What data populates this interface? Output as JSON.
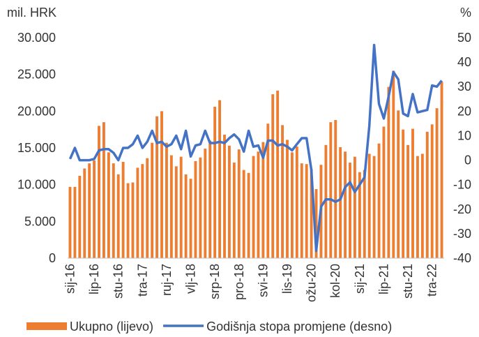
{
  "chart_data": {
    "type": "bar-line",
    "y_label": "mil. HRK",
    "y2_label": "%",
    "categories": [
      "sij-16",
      null,
      null,
      null,
      null,
      "lip-16",
      null,
      null,
      null,
      null,
      "stu-16",
      null,
      null,
      null,
      null,
      "tra-17",
      null,
      null,
      null,
      null,
      "ruj-17",
      null,
      null,
      null,
      null,
      "vlj-18",
      null,
      null,
      null,
      null,
      "srp-18",
      null,
      null,
      null,
      null,
      "pro-18",
      null,
      null,
      null,
      null,
      "svi-19",
      null,
      null,
      null,
      null,
      "lis-19",
      null,
      null,
      null,
      null,
      "ožu-20",
      null,
      null,
      null,
      null,
      "kol-20",
      null,
      null,
      null,
      null,
      "sij-21",
      null,
      null,
      null,
      null,
      "lip-21",
      null,
      null,
      null,
      null,
      "stu-21",
      null,
      null,
      null,
      null,
      "tra-22",
      null,
      null
    ],
    "series": [
      {
        "name": "Ukupno (lijevo)",
        "type": "bar",
        "color": "#ed7d31",
        "values": [
          9700,
          9700,
          11200,
          12200,
          12900,
          13300,
          18000,
          18500,
          14400,
          12900,
          11400,
          13100,
          10200,
          10300,
          12300,
          12800,
          13600,
          15700,
          19300,
          20000,
          15700,
          14000,
          12500,
          13800,
          11400,
          10800,
          13200,
          13700,
          14900,
          16000,
          20600,
          21500,
          16800,
          15300,
          13000,
          14800,
          12000,
          11600,
          13900,
          14500,
          15800,
          18300,
          22300,
          22800,
          18100,
          16100,
          14400,
          15200,
          12900,
          12800,
          12100,
          9400,
          12700,
          15400,
          18500,
          18800,
          15100,
          14500,
          13000,
          13800,
          11700,
          12000,
          14200,
          13900,
          15600,
          17900,
          23300,
          25500,
          20100,
          17500,
          15400,
          17600,
          13900,
          14200,
          17200,
          18200,
          20400,
          24000
        ]
      },
      {
        "name": "Godišnja stopa promjene (desno)",
        "type": "line",
        "axis": "y2",
        "color": "#4472c4",
        "values": [
          0.5,
          5,
          0,
          0,
          0,
          0.5,
          4,
          4.5,
          4.5,
          3,
          0,
          5,
          5,
          6.5,
          10,
          5,
          7.5,
          12,
          7,
          7.5,
          5.5,
          6.5,
          10,
          4.5,
          12,
          1.5,
          6,
          6.5,
          12,
          7,
          7,
          7.5,
          7,
          9,
          10.5,
          8.5,
          3.5,
          12,
          5.5,
          6,
          1,
          8,
          8,
          6,
          6.5,
          5.5,
          4,
          6.5,
          9,
          9,
          -4,
          -37,
          -19,
          -16,
          -16,
          -17,
          -16,
          -11,
          -9,
          -13,
          -10,
          -7,
          14,
          47,
          23,
          17,
          26,
          36,
          33,
          19,
          18,
          27,
          19.5,
          20,
          20.5,
          30.5,
          30,
          32.5
        ]
      }
    ],
    "ylim": [
      0,
      30000
    ],
    "yticks": [
      {
        "value": 0,
        "label": "0"
      },
      {
        "value": 5000,
        "label": "5.000"
      },
      {
        "value": 10000,
        "label": "10.000"
      },
      {
        "value": 15000,
        "label": "15.000"
      },
      {
        "value": 20000,
        "label": "20.000"
      },
      {
        "value": 25000,
        "label": "25.000"
      },
      {
        "value": 30000,
        "label": "30.000"
      }
    ],
    "y2lim": [
      -40,
      50
    ],
    "y2ticks": [
      -40,
      -30,
      -20,
      -10,
      0,
      10,
      20,
      30,
      40,
      50
    ],
    "legend": "bottom"
  }
}
